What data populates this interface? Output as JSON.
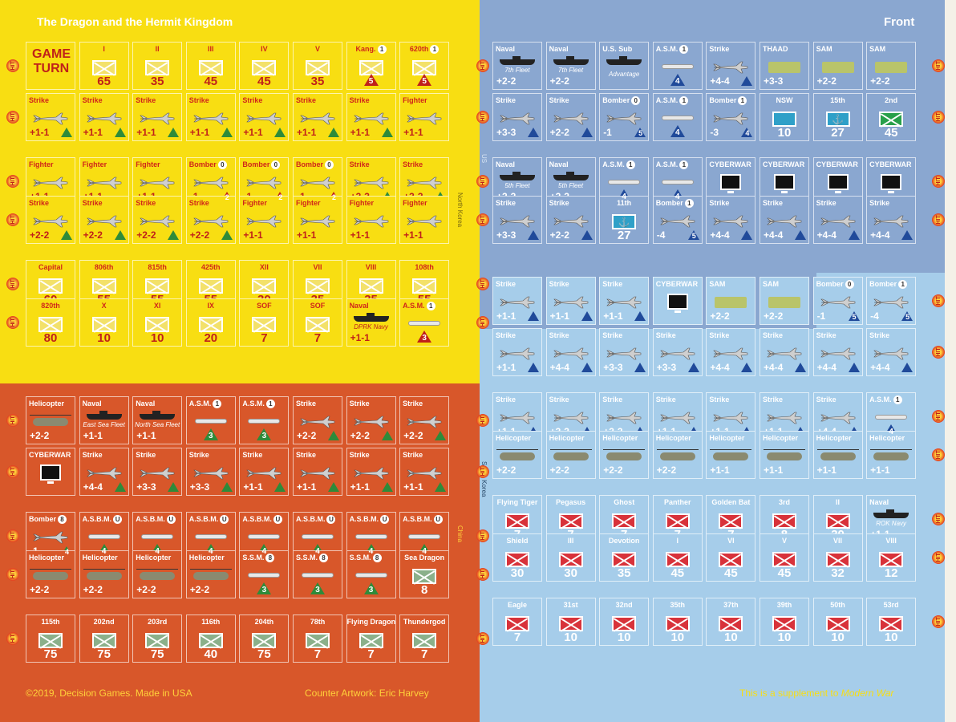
{
  "title": "The Dragon and the Hermit Kingdom",
  "side": "Front",
  "footer": {
    "copyright": "©2019, Decision Games. Made in USA",
    "artwork": "Counter Artwork: Eric Harvey",
    "supplement_prefix": "This is a supplement to ",
    "supplement_title": "Modern War"
  },
  "side_labels": {
    "nk": "North Korea",
    "us": "US",
    "cn": "China",
    "sk": "South Korea"
  },
  "hit": "HIT",
  "game_turn": [
    "GAME",
    "TURN"
  ],
  "nk": [
    [
      {
        "l": "",
        "t": "gt"
      },
      {
        "l": "I",
        "t": "u",
        "b": "65"
      },
      {
        "l": "II",
        "t": "u",
        "b": "35"
      },
      {
        "l": "III",
        "t": "u",
        "b": "45"
      },
      {
        "l": "IV",
        "t": "u",
        "b": "45"
      },
      {
        "l": "V",
        "t": "u",
        "b": "35"
      },
      {
        "l": "Kang.",
        "c": "1",
        "t": "u",
        "tri": "5",
        "tc": "red"
      },
      {
        "l": "620th",
        "c": "1",
        "t": "u",
        "tri": "5",
        "tc": "red"
      }
    ],
    [
      {
        "l": "Strike",
        "t": "j",
        "v": "+1-1",
        "tr": "1"
      },
      {
        "l": "Strike",
        "t": "j",
        "v": "+1-1",
        "tr": "1"
      },
      {
        "l": "Strike",
        "t": "j",
        "v": "+1-1",
        "tr": "1"
      },
      {
        "l": "Strike",
        "t": "j",
        "v": "+1-1",
        "tr": "1"
      },
      {
        "l": "Strike",
        "t": "j",
        "v": "+1-1",
        "tr": "1"
      },
      {
        "l": "Strike",
        "t": "j",
        "v": "+1-1",
        "tr": "1"
      },
      {
        "l": "Strike",
        "t": "j",
        "v": "+1-1",
        "tr": "1"
      },
      {
        "l": "Fighter",
        "t": "j",
        "v": "+1-1"
      }
    ],
    [
      {
        "l": "Fighter",
        "t": "j",
        "v": "+1-1"
      },
      {
        "l": "Fighter",
        "t": "j",
        "v": "+1-1"
      },
      {
        "l": "Fighter",
        "t": "j",
        "v": "+1-1"
      },
      {
        "l": "Bomber",
        "c": "0",
        "t": "j",
        "v": "-1",
        "tn": "2",
        "tc": "red"
      },
      {
        "l": "Bomber",
        "c": "0",
        "t": "j",
        "v": "-1",
        "tn": "2",
        "tc": "red"
      },
      {
        "l": "Bomber",
        "c": "0",
        "t": "j",
        "v": "-1",
        "tn": "2",
        "tc": "red"
      },
      {
        "l": "Strike",
        "t": "j",
        "v": "+3-3",
        "tr": "1"
      },
      {
        "l": "Strike",
        "t": "j",
        "v": "+3-3",
        "tr": "1"
      }
    ],
    [
      {
        "l": "Strike",
        "t": "j",
        "v": "+2-2",
        "tr": "1"
      },
      {
        "l": "Strike",
        "t": "j",
        "v": "+2-2",
        "tr": "1"
      },
      {
        "l": "Strike",
        "t": "j",
        "v": "+2-2",
        "tr": "1"
      },
      {
        "l": "Strike",
        "t": "j",
        "v": "+2-2",
        "tr": "1"
      },
      {
        "l": "Fighter",
        "t": "j",
        "v": "+1-1"
      },
      {
        "l": "Fighter",
        "t": "j",
        "v": "+1-1"
      },
      {
        "l": "Fighter",
        "t": "j",
        "v": "+1-1"
      },
      {
        "l": "Fighter",
        "t": "j",
        "v": "+1-1"
      }
    ],
    [
      {
        "l": "Capital",
        "t": "u",
        "b": "60"
      },
      {
        "l": "806th",
        "t": "u",
        "b": "55"
      },
      {
        "l": "815th",
        "t": "u",
        "b": "55"
      },
      {
        "l": "425th",
        "t": "u",
        "b": "55"
      },
      {
        "l": "XII",
        "t": "u",
        "b": "30"
      },
      {
        "l": "VII",
        "t": "u",
        "b": "35"
      },
      {
        "l": "VIII",
        "t": "u",
        "b": "35"
      },
      {
        "l": "108th",
        "t": "u",
        "b": "55"
      }
    ],
    [
      {
        "l": "820th",
        "t": "u",
        "b": "80"
      },
      {
        "l": "X",
        "t": "u",
        "b": "10"
      },
      {
        "l": "XI",
        "t": "u",
        "b": "10"
      },
      {
        "l": "IX",
        "t": "u",
        "b": "20"
      },
      {
        "l": "SOF",
        "t": "u",
        "b": "7"
      },
      {
        "l": "SOF",
        "t": "u",
        "b": "7"
      },
      {
        "l": "Naval",
        "t": "s",
        "sub": "DPRK Navy",
        "v": "+1-1"
      },
      {
        "l": "A.S.M.",
        "c": "1",
        "t": "m",
        "tri": "3",
        "tc": "red"
      }
    ]
  ],
  "cn": [
    [
      {
        "l": "Helicopter",
        "t": "h",
        "v": "+2-2"
      },
      {
        "l": "Naval",
        "t": "s",
        "sub": "East Sea Fleet",
        "v": "+1-1"
      },
      {
        "l": "Naval",
        "t": "s",
        "sub": "North Sea Fleet",
        "v": "+1-1"
      },
      {
        "l": "A.S.M.",
        "c": "1",
        "t": "m",
        "tri": "3"
      },
      {
        "l": "A.S.M.",
        "c": "1",
        "t": "m",
        "tri": "3"
      },
      {
        "l": "Strike",
        "t": "j",
        "v": "+2-2",
        "tr": "1"
      },
      {
        "l": "Strike",
        "t": "j",
        "v": "+2-2",
        "tr": "1"
      },
      {
        "l": "Strike",
        "t": "j",
        "v": "+2-2",
        "tr": "1"
      }
    ],
    [
      {
        "l": "CYBERWAR",
        "t": "cy"
      },
      {
        "l": "Strike",
        "t": "j",
        "v": "+4-4",
        "tr": "1"
      },
      {
        "l": "Strike",
        "t": "j",
        "v": "+3-3",
        "tr": "1"
      },
      {
        "l": "Strike",
        "t": "j",
        "v": "+3-3",
        "tr": "1"
      },
      {
        "l": "Strike",
        "t": "j",
        "v": "+1-1",
        "tr": "1"
      },
      {
        "l": "Strike",
        "t": "j",
        "v": "+1-1",
        "tr": "1"
      },
      {
        "l": "Strike",
        "t": "j",
        "v": "+1-1",
        "tr": "1"
      },
      {
        "l": "Strike",
        "t": "j",
        "v": "+1-1",
        "tr": "1"
      }
    ],
    [
      {
        "l": "Bomber",
        "c": "8",
        "t": "j",
        "v": "-1",
        "tn": "4"
      },
      {
        "l": "A.S.B.M.",
        "c": "U",
        "t": "m",
        "tri": "4"
      },
      {
        "l": "A.S.B.M.",
        "c": "U",
        "t": "m",
        "tri": "4"
      },
      {
        "l": "A.S.B.M.",
        "c": "U",
        "t": "m",
        "tri": "4"
      },
      {
        "l": "A.S.B.M.",
        "c": "U",
        "t": "m",
        "tri": "4"
      },
      {
        "l": "A.S.B.M.",
        "c": "U",
        "t": "m",
        "tri": "4"
      },
      {
        "l": "A.S.B.M.",
        "c": "U",
        "t": "m",
        "tri": "4"
      },
      {
        "l": "A.S.B.M.",
        "c": "U",
        "t": "m",
        "tri": "4"
      }
    ],
    [
      {
        "l": "Helicopter",
        "t": "h",
        "v": "+2-2"
      },
      {
        "l": "Helicopter",
        "t": "h",
        "v": "+2-2"
      },
      {
        "l": "Helicopter",
        "t": "h",
        "v": "+2-2"
      },
      {
        "l": "Helicopter",
        "t": "h",
        "v": "+2-2"
      },
      {
        "l": "S.S.M.",
        "c": "8",
        "t": "m",
        "tri": "3"
      },
      {
        "l": "S.S.M.",
        "c": "8",
        "t": "m",
        "tri": "3"
      },
      {
        "l": "S.S.M.",
        "c": "8",
        "t": "m",
        "tri": "3"
      },
      {
        "l": "Sea Dragon",
        "t": "u",
        "b": "8"
      }
    ],
    [
      {
        "l": "115th",
        "t": "u",
        "b": "75"
      },
      {
        "l": "202nd",
        "t": "u",
        "b": "75"
      },
      {
        "l": "203rd",
        "t": "u",
        "b": "75"
      },
      {
        "l": "116th",
        "t": "u",
        "b": "40"
      },
      {
        "l": "204th",
        "t": "u",
        "b": "75"
      },
      {
        "l": "78th",
        "t": "u",
        "b": "7"
      },
      {
        "l": "Flying Dragon",
        "t": "u",
        "b": "7"
      },
      {
        "l": "Thundergod",
        "t": "u",
        "b": "7"
      }
    ]
  ],
  "us": [
    [
      {
        "l": "Naval",
        "t": "s",
        "sub": "7th Fleet",
        "v": "+2-2"
      },
      {
        "l": "Naval",
        "t": "s",
        "sub": "7th Fleet",
        "v": "+2-2"
      },
      {
        "l": "U.S. Sub",
        "t": "s",
        "note": "Advantage"
      },
      {
        "l": "A.S.M.",
        "c": "1",
        "t": "m",
        "tri": "4",
        "tc": "blue"
      },
      {
        "l": "Strike",
        "t": "j",
        "v": "+4-4",
        "tr": "1",
        "tc": "blue"
      },
      {
        "l": "THAAD",
        "t": "tk",
        "v": "+3-3"
      },
      {
        "l": "SAM",
        "t": "tk",
        "v": "+2-2"
      },
      {
        "l": "SAM",
        "t": "tk",
        "v": "+2-2"
      }
    ],
    [
      {
        "l": "Strike",
        "t": "j",
        "v": "+3-3",
        "tr": "1",
        "tc": "blue"
      },
      {
        "l": "Strike",
        "t": "j",
        "v": "+2-2",
        "tr": "1",
        "tc": "blue"
      },
      {
        "l": "Bomber",
        "c": "0",
        "t": "j",
        "v": "-1",
        "tn": "5",
        "tc": "blue"
      },
      {
        "l": "A.S.M.",
        "c": "1",
        "t": "m",
        "tri": "4",
        "tc": "blue"
      },
      {
        "l": "Bomber",
        "c": "1",
        "t": "j",
        "v": "-3",
        "tn": "4",
        "tc": "blue"
      },
      {
        "l": "NSW",
        "t": "u",
        "b": "10",
        "navy": true
      },
      {
        "l": "15th",
        "t": "n",
        "b": "27"
      },
      {
        "l": "2nd",
        "t": "u",
        "b": "45",
        "green": true
      }
    ],
    [
      {
        "l": "Naval",
        "t": "s",
        "sub": "5th Fleet",
        "v": "+2-2"
      },
      {
        "l": "Naval",
        "t": "s",
        "sub": "5th Fleet",
        "v": "+2-2"
      },
      {
        "l": "A.S.M.",
        "c": "1",
        "t": "m",
        "tri": "4",
        "tc": "blue"
      },
      {
        "l": "A.S.M.",
        "c": "1",
        "t": "m",
        "tri": "4",
        "tc": "blue"
      },
      {
        "l": "CYBERWAR",
        "t": "cy"
      },
      {
        "l": "CYBERWAR",
        "t": "cy"
      },
      {
        "l": "CYBERWAR",
        "t": "cy"
      },
      {
        "l": "CYBERWAR",
        "t": "cy"
      }
    ],
    [
      {
        "l": "Strike",
        "t": "j",
        "v": "+3-3",
        "tr": "1",
        "tc": "blue"
      },
      {
        "l": "Strike",
        "t": "j",
        "v": "+2-2",
        "tr": "1",
        "tc": "blue"
      },
      {
        "l": "11th",
        "t": "n",
        "b": "27"
      },
      {
        "l": "Bomber",
        "c": "1",
        "t": "j",
        "v": "-4",
        "tn": "5",
        "tc": "blue"
      },
      {
        "l": "Strike",
        "t": "j",
        "v": "+4-4",
        "tr": "1",
        "tc": "blue"
      },
      {
        "l": "Strike",
        "t": "j",
        "v": "+4-4",
        "tr": "1",
        "tc": "blue"
      },
      {
        "l": "Strike",
        "t": "j",
        "v": "+4-4",
        "tr": "1",
        "tc": "blue"
      },
      {
        "l": "Strike",
        "t": "j",
        "v": "+4-4",
        "tr": "1",
        "tc": "blue"
      }
    ]
  ],
  "sk": [
    [
      {
        "l": "Strike",
        "t": "j",
        "v": "+1-1",
        "tr": "1",
        "tc": "blue"
      },
      {
        "l": "Strike",
        "t": "j",
        "v": "+1-1",
        "tr": "1",
        "tc": "blue"
      },
      {
        "l": "Strike",
        "t": "j",
        "v": "+1-1",
        "tr": "1",
        "tc": "blue"
      },
      {
        "l": "CYBERWAR",
        "t": "cy"
      },
      {
        "l": "SAM",
        "t": "tk",
        "v": "+2-2"
      },
      {
        "l": "SAM",
        "t": "tk",
        "v": "+2-2"
      },
      {
        "l": "Bomber",
        "c": "0",
        "t": "j",
        "v": "-1",
        "tn": "5",
        "tc": "blue"
      },
      {
        "l": "Bomber",
        "c": "1",
        "t": "j",
        "v": "-4",
        "tn": "5",
        "tc": "blue"
      }
    ],
    [
      {
        "l": "Strike",
        "t": "j",
        "v": "+1-1",
        "tr": "1",
        "tc": "blue"
      },
      {
        "l": "Strike",
        "t": "j",
        "v": "+4-4",
        "tr": "1",
        "tc": "blue"
      },
      {
        "l": "Strike",
        "t": "j",
        "v": "+3-3",
        "tr": "1",
        "tc": "blue"
      },
      {
        "l": "Strike",
        "t": "j",
        "v": "+3-3",
        "tr": "1",
        "tc": "blue"
      },
      {
        "l": "Strike",
        "t": "j",
        "v": "+4-4",
        "tr": "1",
        "tc": "blue"
      },
      {
        "l": "Strike",
        "t": "j",
        "v": "+4-4",
        "tr": "1",
        "tc": "blue"
      },
      {
        "l": "Strike",
        "t": "j",
        "v": "+4-4",
        "tr": "1",
        "tc": "blue"
      },
      {
        "l": "Strike",
        "t": "j",
        "v": "+4-4",
        "tr": "1",
        "tc": "blue"
      }
    ],
    [
      {
        "l": "Strike",
        "t": "j",
        "v": "+1-1",
        "tr": "1",
        "tc": "blue"
      },
      {
        "l": "Strike",
        "t": "j",
        "v": "+3-3",
        "tr": "1",
        "tc": "blue"
      },
      {
        "l": "Strike",
        "t": "j",
        "v": "+3-3",
        "tr": "1",
        "tc": "blue"
      },
      {
        "l": "Strike",
        "t": "j",
        "v": "+1-1",
        "tr": "1",
        "tc": "blue"
      },
      {
        "l": "Strike",
        "t": "j",
        "v": "+1-1",
        "tr": "1",
        "tc": "blue"
      },
      {
        "l": "Strike",
        "t": "j",
        "v": "+1-1",
        "tr": "1",
        "tc": "blue"
      },
      {
        "l": "Strike",
        "t": "j",
        "v": "+4-4",
        "tr": "1",
        "tc": "blue"
      },
      {
        "l": "A.S.M.",
        "c": "1",
        "t": "m",
        "tri": "4",
        "tc": "blue"
      }
    ],
    [
      {
        "l": "Helicopter",
        "t": "h",
        "v": "+2-2"
      },
      {
        "l": "Helicopter",
        "t": "h",
        "v": "+2-2"
      },
      {
        "l": "Helicopter",
        "t": "h",
        "v": "+2-2"
      },
      {
        "l": "Helicopter",
        "t": "h",
        "v": "+2-2"
      },
      {
        "l": "Helicopter",
        "t": "h",
        "v": "+1-1"
      },
      {
        "l": "Helicopter",
        "t": "h",
        "v": "+1-1"
      },
      {
        "l": "Helicopter",
        "t": "h",
        "v": "+1-1"
      },
      {
        "l": "Helicopter",
        "t": "h",
        "v": "+1-1"
      }
    ],
    [
      {
        "l": "Flying Tiger",
        "t": "u",
        "b": "7"
      },
      {
        "l": "Pegasus",
        "t": "u",
        "b": "7"
      },
      {
        "l": "Ghost",
        "t": "u",
        "b": "7"
      },
      {
        "l": "Panther",
        "t": "u",
        "b": "7"
      },
      {
        "l": "Golden Bat",
        "t": "u",
        "b": "7"
      },
      {
        "l": "3rd",
        "t": "u",
        "b": "8"
      },
      {
        "l": "II",
        "t": "u",
        "b": "30"
      },
      {
        "l": "Naval",
        "t": "s",
        "sub": "ROK Navy",
        "v": "+1-1"
      }
    ],
    [
      {
        "l": "Shield",
        "t": "u",
        "b": "30"
      },
      {
        "l": "III",
        "t": "u",
        "b": "30"
      },
      {
        "l": "Devotion",
        "t": "u",
        "b": "35"
      },
      {
        "l": "I",
        "t": "u",
        "b": "45"
      },
      {
        "l": "VI",
        "t": "u",
        "b": "45"
      },
      {
        "l": "V",
        "t": "u",
        "b": "45"
      },
      {
        "l": "VII",
        "t": "u",
        "b": "32"
      },
      {
        "l": "VIII",
        "t": "u",
        "b": "12"
      }
    ],
    [
      {
        "l": "Eagle",
        "t": "u",
        "b": "7"
      },
      {
        "l": "31st",
        "t": "u",
        "b": "10"
      },
      {
        "l": "32nd",
        "t": "u",
        "b": "10"
      },
      {
        "l": "35th",
        "t": "u",
        "b": "10"
      },
      {
        "l": "37th",
        "t": "u",
        "b": "10"
      },
      {
        "l": "39th",
        "t": "u",
        "b": "10"
      },
      {
        "l": "50th",
        "t": "u",
        "b": "10"
      },
      {
        "l": "53rd",
        "t": "u",
        "b": "10"
      }
    ]
  ]
}
